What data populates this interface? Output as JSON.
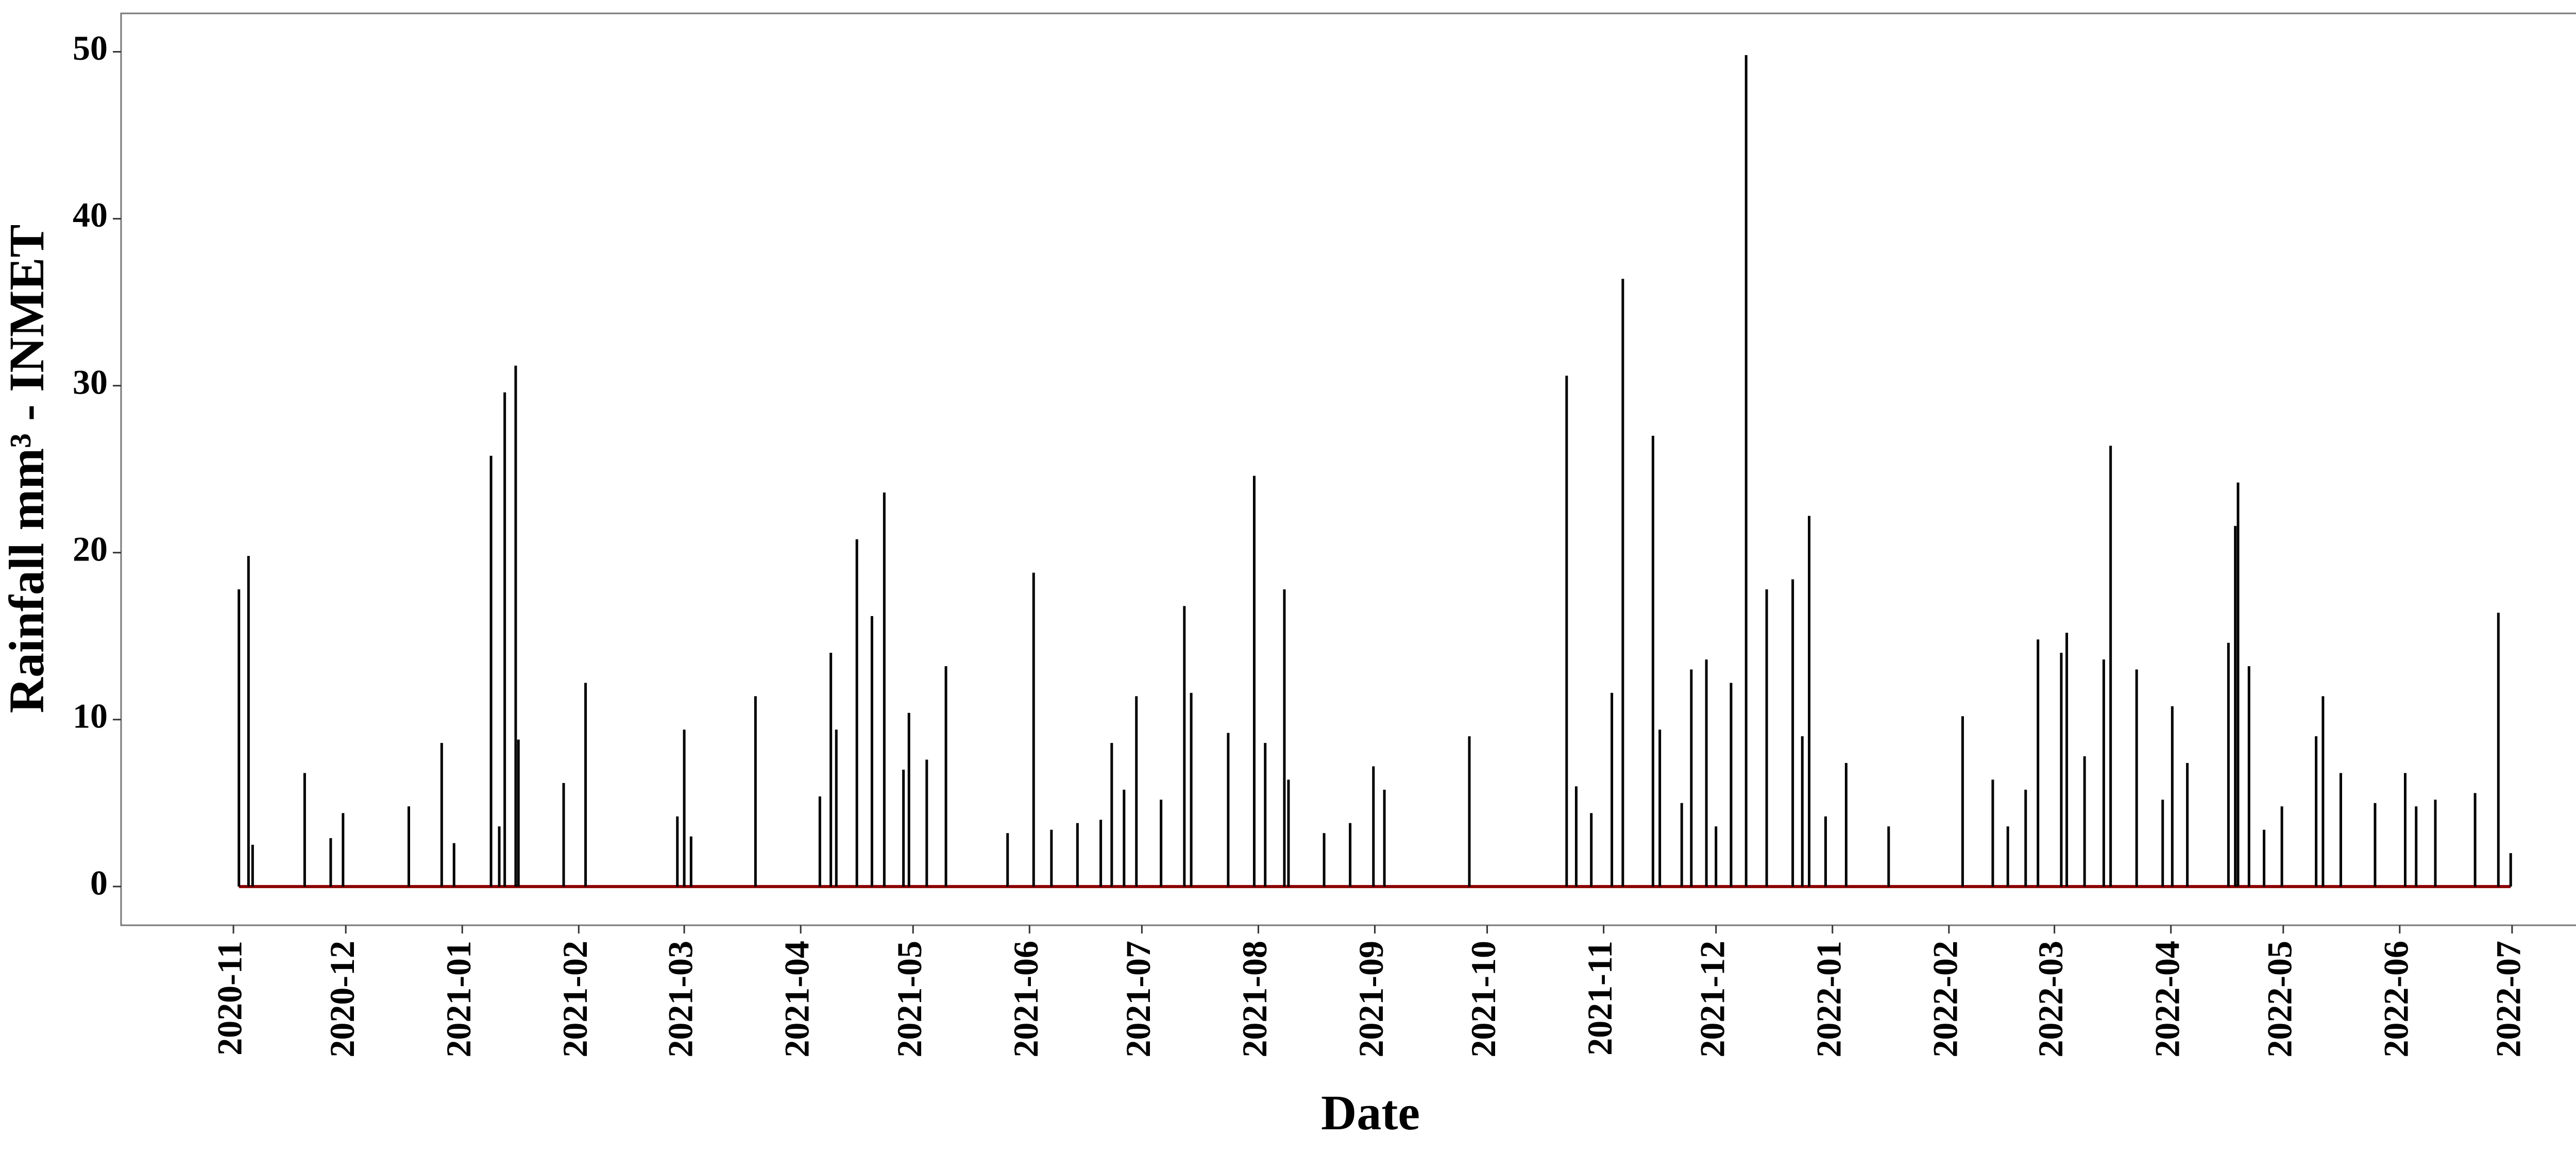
{
  "chart_data": {
    "type": "spike",
    "x_label": "Date",
    "y_label": "Rainfall mm³ - INMET",
    "color": "#000000",
    "baseline_color": "#8b0000",
    "xlim": [
      2020.751,
      2022.578
    ],
    "ylim": [
      -2.32,
      52.3
    ],
    "yticks": [
      0,
      10,
      20,
      30,
      40,
      50
    ],
    "xticks": [
      {
        "value": 2020.833,
        "label": "2020-11"
      },
      {
        "value": 2020.915,
        "label": "2020-12"
      },
      {
        "value": 2021.0,
        "label": "2021-01"
      },
      {
        "value": 2021.085,
        "label": "2021-02"
      },
      {
        "value": 2021.162,
        "label": "2021-03"
      },
      {
        "value": 2021.247,
        "label": "2021-04"
      },
      {
        "value": 2021.329,
        "label": "2021-05"
      },
      {
        "value": 2021.414,
        "label": "2021-06"
      },
      {
        "value": 2021.496,
        "label": "2021-07"
      },
      {
        "value": 2021.581,
        "label": "2021-08"
      },
      {
        "value": 2021.666,
        "label": "2021-09"
      },
      {
        "value": 2021.748,
        "label": "2021-10"
      },
      {
        "value": 2021.833,
        "label": "2021-11"
      },
      {
        "value": 2021.915,
        "label": "2021-12"
      },
      {
        "value": 2022.0,
        "label": "2022-01"
      },
      {
        "value": 2022.085,
        "label": "2022-02"
      },
      {
        "value": 2022.162,
        "label": "2022-03"
      },
      {
        "value": 2022.247,
        "label": "2022-04"
      },
      {
        "value": 2022.329,
        "label": "2022-05"
      },
      {
        "value": 2022.414,
        "label": "2022-06"
      },
      {
        "value": 2022.496,
        "label": "2022-07"
      }
    ],
    "x": [
      2020.837,
      2020.844,
      2020.847,
      2020.885,
      2020.904,
      2020.913,
      2020.961,
      2020.985,
      2020.994,
      2021.021,
      2021.027,
      2021.031,
      2021.039,
      2021.041,
      2021.074,
      2021.09,
      2021.157,
      2021.162,
      2021.167,
      2021.214,
      2021.261,
      2021.269,
      2021.273,
      2021.288,
      2021.299,
      2021.308,
      2021.322,
      2021.326,
      2021.339,
      2021.353,
      2021.398,
      2021.417,
      2021.43,
      2021.449,
      2021.466,
      2021.474,
      2021.483,
      2021.492,
      2021.51,
      2021.527,
      2021.532,
      2021.559,
      2021.578,
      2021.586,
      2021.6,
      2021.603,
      2021.629,
      2021.648,
      2021.665,
      2021.673,
      2021.735,
      2021.806,
      2021.813,
      2021.824,
      2021.839,
      2021.847,
      2021.869,
      2021.874,
      2021.89,
      2021.897,
      2021.908,
      2021.915,
      2021.926,
      2021.937,
      2021.952,
      2021.971,
      2021.978,
      2021.983,
      2021.995,
      2022.01,
      2022.041,
      2022.095,
      2022.117,
      2022.128,
      2022.141,
      2022.15,
      2022.167,
      2022.171,
      2022.184,
      2022.198,
      2022.203,
      2022.222,
      2022.241,
      2022.248,
      2022.259,
      2022.289,
      2022.294,
      2022.296,
      2022.304,
      2022.315,
      2022.328,
      2022.353,
      2022.358,
      2022.371,
      2022.396,
      2022.418,
      2022.426,
      2022.44,
      2022.469,
      2022.486,
      2022.495
    ],
    "values": [
      17.8,
      19.8,
      2.5,
      6.8,
      2.9,
      4.4,
      4.8,
      8.6,
      2.6,
      25.8,
      3.6,
      29.6,
      31.2,
      8.8,
      6.2,
      12.2,
      4.2,
      9.4,
      3,
      11.4,
      5.4,
      14,
      9.4,
      20.8,
      16.2,
      23.6,
      7,
      10.4,
      7.6,
      13.2,
      3.2,
      18.8,
      3.4,
      3.8,
      4,
      8.6,
      5.8,
      11.4,
      5.2,
      16.8,
      11.6,
      9.2,
      24.6,
      8.6,
      17.8,
      6.4,
      3.2,
      3.8,
      7.2,
      5.8,
      9,
      30.6,
      6,
      4.4,
      11.6,
      36.4,
      27,
      9.4,
      5,
      13,
      13.6,
      3.6,
      12.2,
      49.8,
      17.8,
      18.4,
      9,
      22.2,
      4.2,
      7.4,
      3.6,
      10.2,
      6.4,
      3.6,
      5.8,
      14.8,
      14,
      15.2,
      7.8,
      13.6,
      26.4,
      13,
      5.2,
      10.8,
      7.4,
      14.6,
      21.6,
      24.2,
      13.2,
      3.4,
      4.8,
      9,
      11.4,
      6.8,
      5,
      6.8,
      4.8,
      5.2,
      5.6,
      16.4,
      2
    ]
  }
}
